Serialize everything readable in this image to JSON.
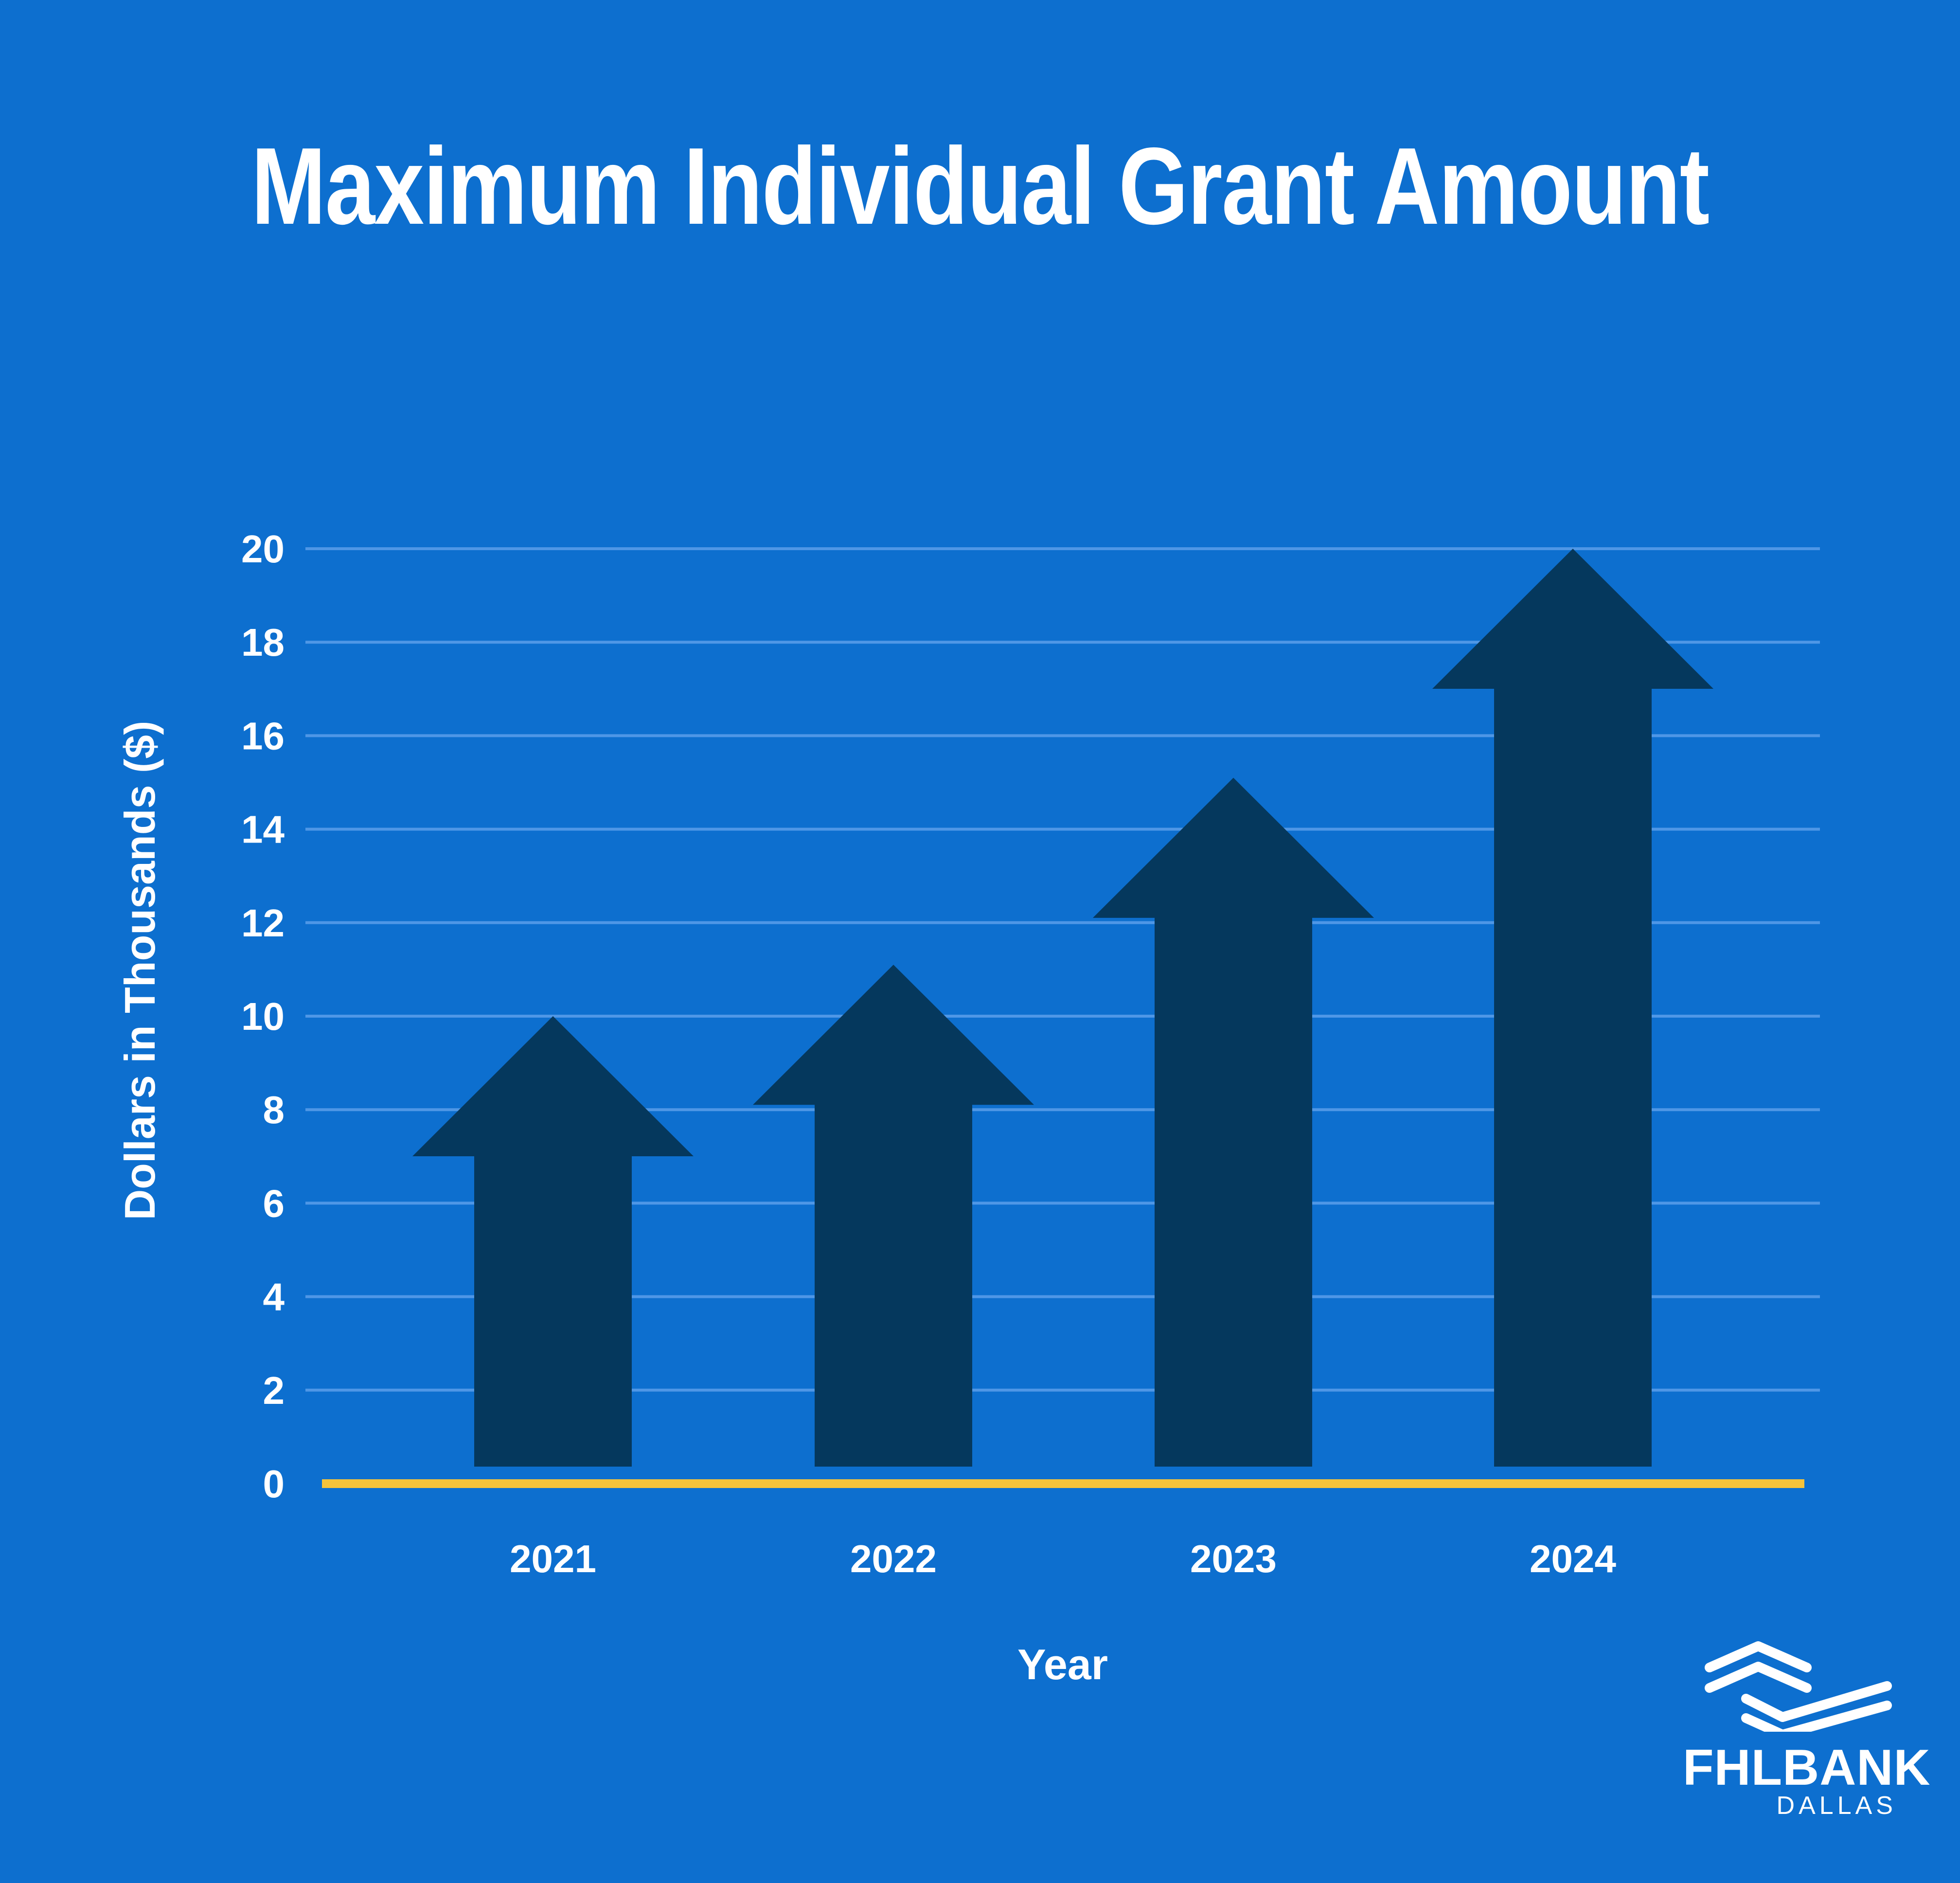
{
  "chart_data": {
    "type": "bar",
    "title": "Maximum Individual Grant Amount",
    "xlabel": "Year",
    "ylabel": "Dollars in Thousands ($)",
    "categories": [
      "2021",
      "2022",
      "2023",
      "2024"
    ],
    "values": [
      10,
      11.1,
      15.1,
      20
    ],
    "ylim": [
      0,
      20
    ],
    "yticks": [
      "0",
      "2",
      "4",
      "6",
      "8",
      "10",
      "12",
      "14",
      "16",
      "18",
      "20"
    ],
    "mark_shape": "arrow",
    "grid": true,
    "legend": "none",
    "colors": {
      "background": "#0d6fcf",
      "bars": "#05385d",
      "gridlines": "#4f97e6",
      "baseline": "#f5c33b",
      "text": "#ffffff"
    }
  },
  "logo": {
    "name": "FHLBANK",
    "sub": "DALLAS"
  }
}
